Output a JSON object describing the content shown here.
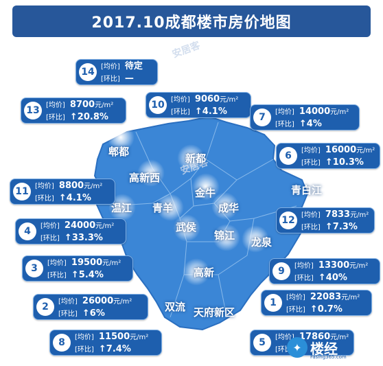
{
  "title": "2017.10成都楼市房价地图",
  "watermark": "安居客",
  "labels": {
    "avg": "[均价]",
    "ratio": "[环比]",
    "unit": "元/m²"
  },
  "colors": {
    "title_bg": "#27579a",
    "map_fill": "#3b86d6",
    "callout_bg": "#1e5fae"
  },
  "callouts": [
    {
      "num": "14",
      "price": "待定",
      "change": "—"
    },
    {
      "num": "13",
      "price": "8700",
      "change": "↑20.8%"
    },
    {
      "num": "10",
      "price": "9060",
      "change": "↑4.1%"
    },
    {
      "num": "7",
      "price": "14000",
      "change": "↑4%"
    },
    {
      "num": "6",
      "price": "16000",
      "change": "↑10.3%"
    },
    {
      "num": "11",
      "price": "8800",
      "change": "↑4.1%"
    },
    {
      "num": "12",
      "price": "7833",
      "change": "↑7.3%"
    },
    {
      "num": "4",
      "price": "24000",
      "change": "↑33.3%"
    },
    {
      "num": "3",
      "price": "19500",
      "change": "↑5.4%"
    },
    {
      "num": "9",
      "price": "13300",
      "change": "↑40%"
    },
    {
      "num": "2",
      "price": "26000",
      "change": "↑6%"
    },
    {
      "num": "1",
      "price": "22083",
      "change": "↑0.7%"
    },
    {
      "num": "8",
      "price": "11500",
      "change": "↑7.4%"
    },
    {
      "num": "5",
      "price": "17860",
      "change": "↑"
    }
  ],
  "districts": [
    "郫都",
    "新都",
    "高新西",
    "金牛",
    "青白江",
    "温江",
    "青羊",
    "成华",
    "武侯",
    "锦江",
    "龙泉",
    "高新",
    "双流",
    "天府新区"
  ],
  "logo": {
    "brand": "楼经",
    "site": "Fasing365.com"
  }
}
